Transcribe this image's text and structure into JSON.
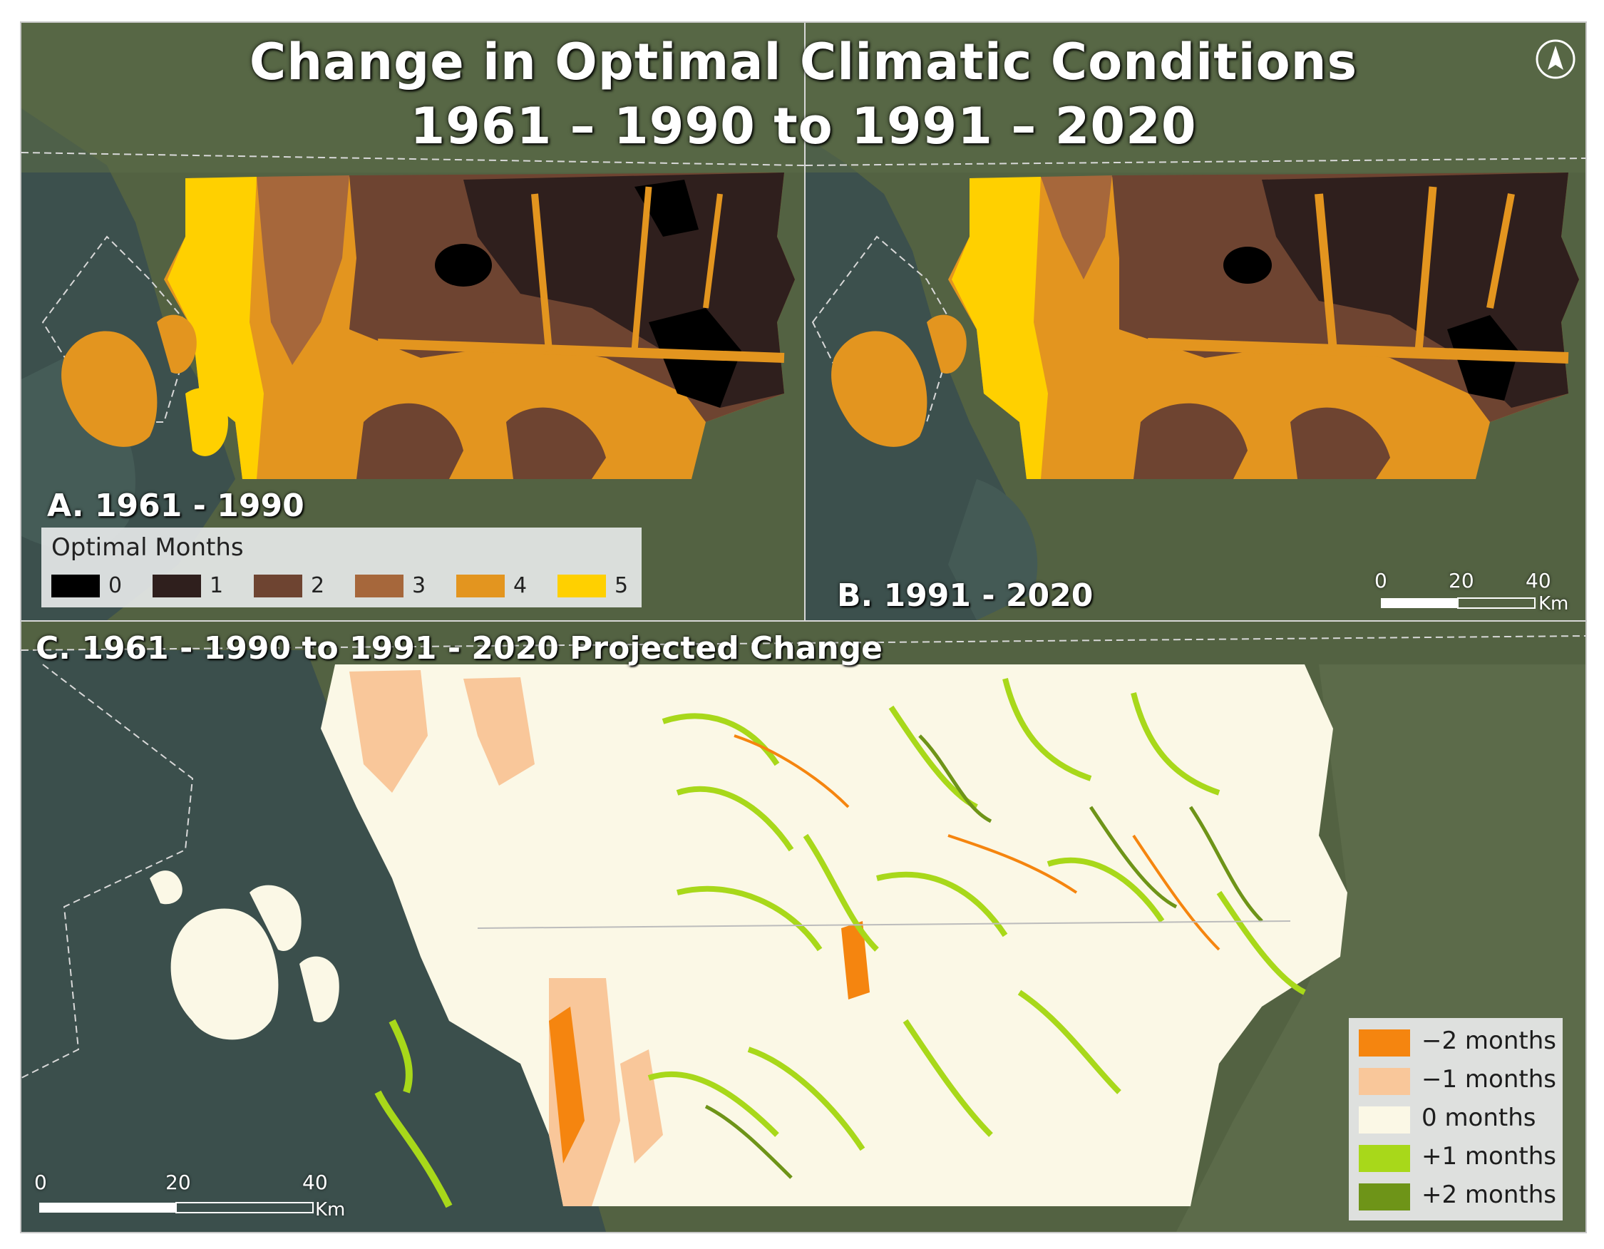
{
  "title": {
    "line1": "Change in Optimal Climatic Conditions",
    "line2": "1961 – 1990 to 1991 – 2020"
  },
  "north_arrow": "north-arrow-icon",
  "panel_a": {
    "label": "A. 1961 - 1990"
  },
  "panel_b": {
    "label": "B. 1991 - 2020"
  },
  "panel_c": {
    "label": "C. 1961 - 1990 to 1991 - 2020 Projected Change"
  },
  "legend_optimal": {
    "title": "Optimal Months",
    "items": [
      {
        "label": "0",
        "color": "#000000"
      },
      {
        "label": "1",
        "color": "#2f1f1d"
      },
      {
        "label": "2",
        "color": "#6e4431"
      },
      {
        "label": "3",
        "color": "#a6673b"
      },
      {
        "label": "4",
        "color": "#e3951f"
      },
      {
        "label": "5",
        "color": "#ffd000"
      }
    ]
  },
  "legend_change": {
    "items": [
      {
        "label": "−2 months",
        "color": "#f5850f"
      },
      {
        "label": "−1 months",
        "color": "#f9c79a"
      },
      {
        "label": "0 months",
        "color": "#fbf8e6"
      },
      {
        "label": "+1 months",
        "color": "#a8d81a"
      },
      {
        "label": "+2 months",
        "color": "#6e9418"
      }
    ]
  },
  "scale_b": {
    "ticks": [
      "0",
      "20",
      "40"
    ],
    "unit": "Km"
  },
  "scale_c": {
    "ticks": [
      "0",
      "20",
      "40"
    ],
    "unit": "Km"
  },
  "colors": {
    "land": "#4d5b3c",
    "water": "#3a4e4a",
    "boundary": "#d9d9d9"
  }
}
